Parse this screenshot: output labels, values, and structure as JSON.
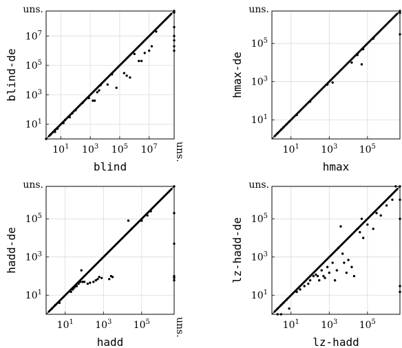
{
  "chart_data": [
    {
      "type": "scatter",
      "xlabel": "blind",
      "ylabel": "blind-de",
      "scale": "log",
      "min": 1,
      "max": 500000000,
      "ticks": [
        {
          "value": 10,
          "label": "10"
        },
        {
          "value": 1000,
          "label": "10"
        },
        {
          "value": 100000,
          "label": "10"
        },
        {
          "value": 10000000,
          "label": "10"
        }
      ],
      "tick_exponents": [
        "1",
        "3",
        "5",
        "7"
      ],
      "unsolved_label": "uns.",
      "diagonal": true,
      "diag_density": 230,
      "points": [
        [
          1,
          1
        ],
        [
          2,
          2
        ],
        [
          3,
          3
        ],
        [
          4,
          4
        ],
        [
          4,
          3
        ],
        [
          6,
          5
        ],
        [
          15,
          12
        ],
        [
          20,
          20
        ],
        [
          40,
          30
        ],
        [
          60,
          55
        ],
        [
          100,
          90
        ],
        [
          300,
          280
        ],
        [
          800,
          600
        ],
        [
          1500,
          400
        ],
        [
          2000,
          400
        ],
        [
          3000,
          1500
        ],
        [
          4000,
          2000
        ],
        [
          5000,
          4500
        ],
        [
          15000,
          5000
        ],
        [
          30000,
          25000
        ],
        [
          60000,
          3000
        ],
        [
          200000,
          30000
        ],
        [
          300000,
          20000
        ],
        [
          500000,
          15000
        ],
        [
          1000000,
          600000
        ],
        [
          2000000,
          200000
        ],
        [
          3000000,
          200000
        ],
        [
          5000000,
          700000
        ],
        [
          10000000,
          1000000
        ],
        [
          15000000,
          2000000
        ],
        [
          30000000,
          20000000
        ],
        [
          500000000,
          400000000
        ],
        [
          500000000,
          40000000
        ],
        [
          500000000,
          10000000
        ],
        [
          500000000,
          5000000
        ],
        [
          500000000,
          2000000
        ],
        [
          500000000,
          1000000
        ],
        [
          500000000,
          500000000
        ]
      ]
    },
    {
      "type": "scatter",
      "xlabel": "hmax",
      "ylabel": "hmax-de",
      "scale": "log",
      "min": 1,
      "max": 5000000,
      "ticks": [
        {
          "value": 10,
          "label": "10"
        },
        {
          "value": 1000,
          "label": "10"
        },
        {
          "value": 100000,
          "label": "10"
        }
      ],
      "tick_exponents": [
        "1",
        "3",
        "5"
      ],
      "unsolved_label": "uns.",
      "diagonal": true,
      "diag_density": 200,
      "points": [
        [
          2,
          2
        ],
        [
          3,
          3
        ],
        [
          4,
          4
        ],
        [
          6,
          6
        ],
        [
          8,
          8
        ],
        [
          20,
          18
        ],
        [
          100,
          90
        ],
        [
          800,
          700
        ],
        [
          1500,
          900
        ],
        [
          15000,
          10000
        ],
        [
          30000,
          25000
        ],
        [
          50000,
          8000
        ],
        [
          60000,
          50000
        ],
        [
          200000,
          180000
        ],
        [
          5000000,
          4000000
        ],
        [
          5000000,
          300000
        ],
        [
          5000000,
          5000000
        ]
      ]
    },
    {
      "type": "scatter",
      "xlabel": "hadd",
      "ylabel": "hadd-de",
      "scale": "log",
      "min": 1,
      "max": 5000000,
      "ticks": [
        {
          "value": 10,
          "label": "10"
        },
        {
          "value": 1000,
          "label": "10"
        },
        {
          "value": 100000,
          "label": "10"
        }
      ],
      "tick_exponents": [
        "1",
        "3",
        "5"
      ],
      "unsolved_label": "uns.",
      "diagonal": true,
      "diag_density": 200,
      "points": [
        [
          2,
          2
        ],
        [
          3,
          3
        ],
        [
          5,
          4
        ],
        [
          20,
          15
        ],
        [
          25,
          20
        ],
        [
          30,
          25
        ],
        [
          35,
          30
        ],
        [
          40,
          30
        ],
        [
          50,
          40
        ],
        [
          60,
          50
        ],
        [
          70,
          200
        ],
        [
          80,
          50
        ],
        [
          100,
          50
        ],
        [
          150,
          40
        ],
        [
          200,
          45
        ],
        [
          300,
          50
        ],
        [
          400,
          60
        ],
        [
          500,
          70
        ],
        [
          600,
          90
        ],
        [
          800,
          80
        ],
        [
          2000,
          70
        ],
        [
          2500,
          100
        ],
        [
          3000,
          90
        ],
        [
          20000,
          80000
        ],
        [
          30000,
          30000
        ],
        [
          100000,
          80000
        ],
        [
          200000,
          150000
        ],
        [
          300000,
          250000
        ],
        [
          5000000,
          200000
        ],
        [
          5000000,
          5000
        ],
        [
          5000000,
          100
        ],
        [
          5000000,
          80
        ],
        [
          5000000,
          60
        ],
        [
          5000000,
          5000000
        ]
      ]
    },
    {
      "type": "scatter",
      "xlabel": "lz-hadd",
      "ylabel": "lz-hadd-de",
      "scale": "log",
      "min": 1,
      "max": 5000000,
      "ticks": [
        {
          "value": 10,
          "label": "10"
        },
        {
          "value": 1000,
          "label": "10"
        },
        {
          "value": 100000,
          "label": "10"
        }
      ],
      "tick_exponents": [
        "1",
        "3",
        "5"
      ],
      "unsolved_label": "uns.",
      "diagonal": true,
      "diag_density": 200,
      "points": [
        [
          2,
          2
        ],
        [
          3,
          3
        ],
        [
          4,
          4
        ],
        [
          6,
          6
        ],
        [
          2,
          1
        ],
        [
          3,
          1
        ],
        [
          8,
          2
        ],
        [
          20,
          15
        ],
        [
          30,
          20
        ],
        [
          50,
          30
        ],
        [
          80,
          40
        ],
        [
          100,
          60
        ],
        [
          150,
          100
        ],
        [
          200,
          120
        ],
        [
          250,
          100
        ],
        [
          300,
          60
        ],
        [
          400,
          200
        ],
        [
          500,
          100
        ],
        [
          600,
          80
        ],
        [
          800,
          300
        ],
        [
          1000,
          150
        ],
        [
          1500,
          500
        ],
        [
          2000,
          60
        ],
        [
          2500,
          200
        ],
        [
          3000,
          3000
        ],
        [
          4000,
          40000
        ],
        [
          5000,
          1500
        ],
        [
          6000,
          500
        ],
        [
          8000,
          150
        ],
        [
          10000,
          700
        ],
        [
          15000,
          300
        ],
        [
          20000,
          100
        ],
        [
          30000,
          30000
        ],
        [
          40000,
          20000
        ],
        [
          50000,
          100000
        ],
        [
          60000,
          10000
        ],
        [
          100000,
          50000
        ],
        [
          200000,
          30000
        ],
        [
          300000,
          200000
        ],
        [
          500000,
          150000
        ],
        [
          1000000,
          500000
        ],
        [
          2000000,
          1000000
        ],
        [
          3000000,
          5000000
        ],
        [
          5000000,
          1000000
        ],
        [
          5000000,
          100000
        ],
        [
          5000000,
          30
        ],
        [
          5000000,
          15
        ],
        [
          5000000,
          5000000
        ]
      ]
    }
  ]
}
